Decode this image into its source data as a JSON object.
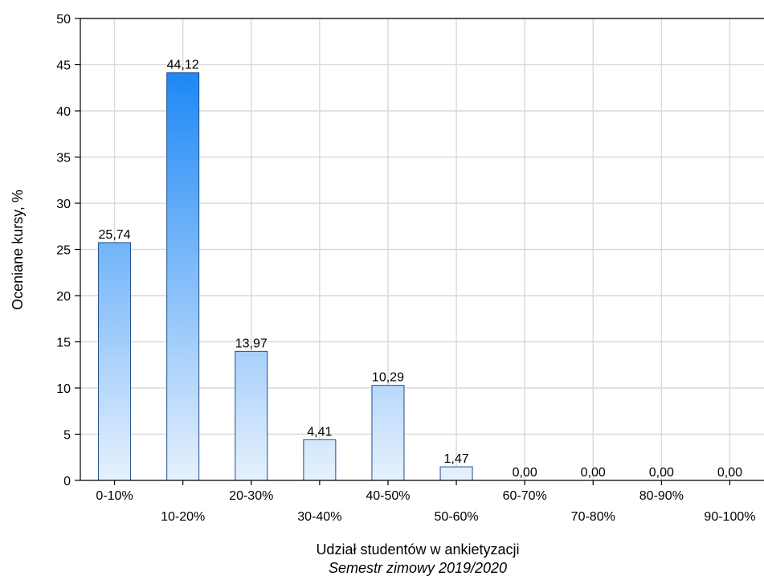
{
  "chart_data": {
    "type": "bar",
    "categories": [
      "0-10%",
      "10-20%",
      "20-30%",
      "30-40%",
      "40-50%",
      "50-60%",
      "60-70%",
      "70-80%",
      "80-90%",
      "90-100%"
    ],
    "values": [
      25.74,
      44.12,
      13.97,
      4.41,
      10.29,
      1.47,
      0.0,
      0.0,
      0.0,
      0.0
    ],
    "value_labels": [
      "25,74",
      "44,12",
      "13,97",
      "4,41",
      "10,29",
      "1,47",
      "0,00",
      "0,00",
      "0,00",
      "0,00"
    ],
    "xlabel": "Udział studentów w ankietyzacji",
    "xlabel_subtitle": "Semestr zimowy 2019/2020",
    "ylabel": "Oceniane kursy, %",
    "ylim": [
      0,
      50
    ],
    "yticks": [
      0,
      5,
      10,
      15,
      20,
      25,
      30,
      35,
      40,
      45,
      50
    ],
    "grid": true,
    "bar_gradient": {
      "top": "#1e88f5",
      "bottom": "#e6f1fd"
    },
    "bar_border_color": "#1f4e8c"
  }
}
